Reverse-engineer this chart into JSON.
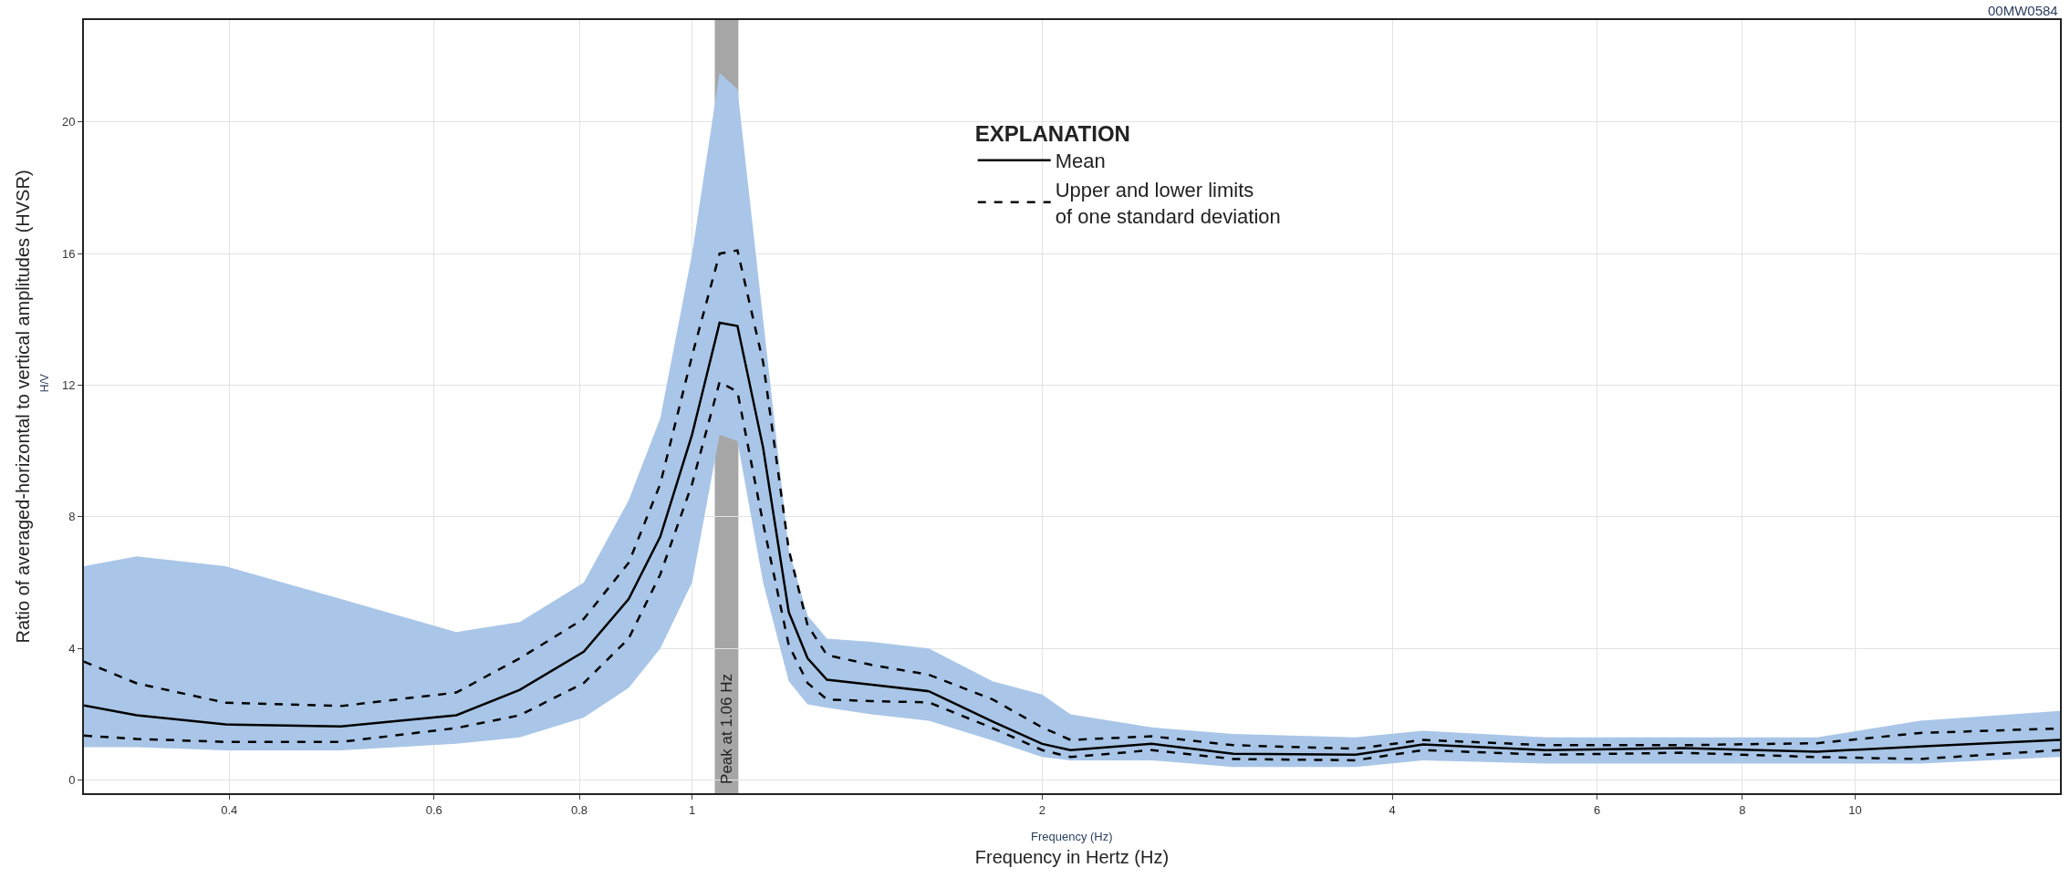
{
  "chart_data": {
    "type": "line",
    "xlabel": "Frequency in Hertz (Hz)",
    "ylabel": "Ratio of averaged-horizontal to vertical amplitudes (HVSR)",
    "legend_title": "EXPLANATION",
    "legend": "top",
    "log": "x",
    "grid": true,
    "marker": "none",
    "annotations": [
      "00MW0584",
      "H/V",
      "Frequency (Hz)"
    ],
    "xlim": [
      0.3,
      15
    ],
    "xticks": [
      0.4,
      0.6,
      0.8,
      1,
      2,
      4,
      6,
      8,
      10
    ],
    "ylim": [
      -0.4,
      23.1
    ],
    "yticks": [
      0,
      4,
      8,
      12,
      16,
      20
    ],
    "x": [
      0.3,
      0.333,
      0.397,
      0.499,
      0.627,
      0.711,
      0.807,
      0.882,
      0.939,
      1.0,
      1.056,
      1.094,
      1.151,
      1.211,
      1.257,
      1.306,
      1.427,
      1.598,
      1.813,
      2.0,
      2.115,
      2.484,
      2.92,
      3.72,
      4.25,
      5.42,
      7.1,
      9.27,
      11.37,
      15
    ],
    "bands": [
      {
        "axis": "x",
        "from": 1.046,
        "to": 1.096,
        "label": "Peak at 1.06 Hz",
        "color": "#a6a6a6"
      }
    ],
    "series": [
      {
        "color": "#a9c6e8",
        "values": [
          null,
          null,
          null,
          null,
          null,
          null,
          null,
          null,
          null,
          null,
          null,
          null,
          null,
          null,
          null,
          null,
          null,
          null,
          null,
          null,
          null,
          null,
          null,
          null,
          null,
          null,
          null,
          null,
          null,
          null
        ],
        "lower": [
          1.0,
          1.0,
          0.9,
          0.9,
          1.1,
          1.3,
          1.9,
          2.8,
          4,
          6,
          10.5,
          10.3,
          6,
          3,
          2.3,
          2.2,
          2,
          1.8,
          1.2,
          0.7,
          0.6,
          0.6,
          0.4,
          0.4,
          0.6,
          0.5,
          0.5,
          0.5,
          0.5,
          0.7
        ],
        "upper": [
          6.5,
          6.8,
          6.5,
          5.5,
          4.5,
          4.8,
          6,
          8.5,
          11,
          16,
          21.5,
          21,
          14,
          7,
          5,
          4.3,
          4.2,
          4,
          3,
          2.6,
          2,
          1.6,
          1.4,
          1.3,
          1.5,
          1.3,
          1.3,
          1.3,
          1.8,
          2.1
        ]
      },
      {
        "name": "Mean",
        "color": "#000000",
        "line_style": "solid",
        "values": [
          2.27,
          1.97,
          1.69,
          1.63,
          1.97,
          2.74,
          3.9,
          5.5,
          7.4,
          10.5,
          13.9,
          13.8,
          10.1,
          5.1,
          3.7,
          3.05,
          2.9,
          2.7,
          1.78,
          1.1,
          0.91,
          1.1,
          0.8,
          0.77,
          1.08,
          0.91,
          0.97,
          0.86,
          1.02,
          1.22
        ]
      },
      {
        "name": "Upper and lower limits\nof one standard deviation",
        "color": "#000000",
        "line_style": "dashed",
        "values": [
          3.6,
          2.94,
          2.35,
          2.25,
          2.66,
          3.7,
          4.9,
          6.6,
          9.0,
          12.9,
          16.0,
          16.1,
          12.7,
          7.0,
          4.7,
          3.8,
          3.5,
          3.2,
          2.45,
          1.6,
          1.22,
          1.33,
          1.06,
          0.95,
          1.22,
          1.06,
          1.06,
          1.12,
          1.43,
          1.57
        ]
      },
      {
        "color": "#000000",
        "line_style": "dashed",
        "values": [
          1.35,
          1.25,
          1.16,
          1.16,
          1.58,
          1.97,
          2.95,
          4.3,
          6.25,
          9.0,
          12.1,
          11.8,
          7.8,
          4.1,
          2.95,
          2.45,
          2.4,
          2.36,
          1.58,
          0.91,
          0.7,
          0.91,
          0.64,
          0.6,
          0.91,
          0.77,
          0.83,
          0.7,
          0.64,
          0.91
        ]
      }
    ]
  }
}
